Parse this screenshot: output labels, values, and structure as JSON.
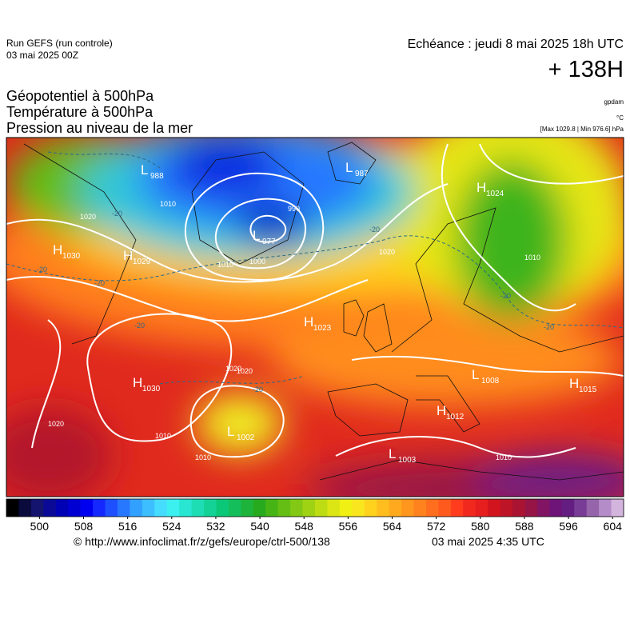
{
  "header": {
    "run": "Run GEFS (run controle)",
    "run_date": "03 mai 2025 00Z",
    "valid": "Echéance : jeudi 8 mai 2025 18h UTC",
    "lead": "+ 138H"
  },
  "fields": [
    "Géopotentiel à 500hPa",
    "Température à 500hPa",
    "Pression au niveau de la mer"
  ],
  "units": [
    "gpdam",
    "°C",
    "[Max 1029.8 | Min 976.6] hPa"
  ],
  "centers": [
    {
      "kind": "L",
      "value": "988"
    },
    {
      "kind": "L",
      "value": "987"
    },
    {
      "kind": "H",
      "value": "1024"
    },
    {
      "kind": "L",
      "value": "977"
    },
    {
      "kind": "H",
      "value": "1030"
    },
    {
      "kind": "H",
      "value": "1029"
    },
    {
      "kind": "H",
      "value": "1023"
    },
    {
      "kind": "H",
      "value": "1030"
    },
    {
      "kind": "L",
      "value": "1002"
    },
    {
      "kind": "L",
      "value": "1008"
    },
    {
      "kind": "H",
      "value": "1015"
    },
    {
      "kind": "H",
      "value": "1012"
    },
    {
      "kind": "L",
      "value": "1003"
    }
  ],
  "isobar_labels": [
    "1020",
    "1010",
    "1000",
    "990",
    "1020",
    "1020",
    "1010",
    "1020",
    "1010",
    "1010",
    "1010",
    "1020",
    "1010"
  ],
  "isotherm_labels": [
    "-20",
    "-20",
    "-20",
    "-20",
    "-20",
    "-20",
    "-20",
    "-20"
  ],
  "colorbar": {
    "lim": [
      494,
      606
    ],
    "ticks": [
      500,
      508,
      516,
      524,
      532,
      540,
      548,
      556,
      564,
      572,
      580,
      588,
      596,
      604
    ],
    "colors": [
      "#000000",
      "#0a0a3c",
      "#14146e",
      "#0a0a96",
      "#0000b4",
      "#0000d2",
      "#0000f0",
      "#1428ff",
      "#1e50ff",
      "#2878ff",
      "#32a0ff",
      "#3cbeff",
      "#46dcff",
      "#3cf0f0",
      "#28e6d2",
      "#1edcb4",
      "#14d296",
      "#0ac878",
      "#14be5a",
      "#1eb43c",
      "#28aa1e",
      "#46b414",
      "#64be14",
      "#82c814",
      "#a0d214",
      "#bedc14",
      "#dce614",
      "#f0f014",
      "#fae61e",
      "#ffd21e",
      "#ffbe1e",
      "#ffaa1e",
      "#ff961e",
      "#ff821e",
      "#ff6e1e",
      "#ff5a1e",
      "#ff3c1e",
      "#f0281e",
      "#e61e1e",
      "#d2141e",
      "#be1428",
      "#aa1432",
      "#961446",
      "#821464",
      "#6e1478",
      "#641e82",
      "#783c96",
      "#9664aa",
      "#b48cc8",
      "#d2b4dc"
    ]
  },
  "footer": {
    "credit": "© http://www.infoclimat.fr/z/gefs/europe/ctrl-500/138",
    "stamp": "03 mai 2025  4:35 UTC"
  }
}
